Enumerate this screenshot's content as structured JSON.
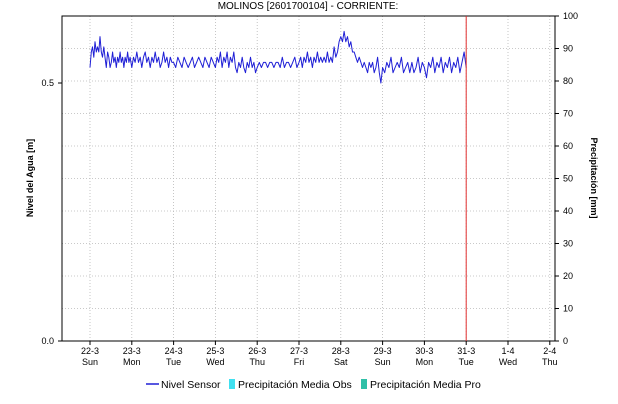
{
  "chart_data": {
    "type": "line",
    "title": "MOLINOS  [2601700104] - CORRIENTE:",
    "ylabel_left": "Nivel del Agua [m]",
    "ylabel_right": "Precipitación [mm]",
    "ylim_left": [
      0,
      0.5
    ],
    "yticks_left": [
      "0.0",
      "0.5"
    ],
    "ylim_right": [
      0,
      100
    ],
    "yticks_right": [
      "0",
      "10",
      "20",
      "30",
      "40",
      "50",
      "60",
      "70",
      "80",
      "90",
      "100"
    ],
    "x_start_day": "22-3",
    "x_ticks": [
      {
        "date": "22-3",
        "weekday": "Sun"
      },
      {
        "date": "23-3",
        "weekday": "Mon"
      },
      {
        "date": "24-3",
        "weekday": "Tue"
      },
      {
        "date": "25-3",
        "weekday": "Wed"
      },
      {
        "date": "26-3",
        "weekday": "Thu"
      },
      {
        "date": "27-3",
        "weekday": "Fri"
      },
      {
        "date": "28-3",
        "weekday": "Sat"
      },
      {
        "date": "29-3",
        "weekday": "Sun"
      },
      {
        "date": "30-3",
        "weekday": "Mon"
      },
      {
        "date": "31-3",
        "weekday": "Tue"
      },
      {
        "date": "1-4",
        "weekday": "Wed"
      },
      {
        "date": "2-4",
        "weekday": "Thu"
      }
    ],
    "current_time_marker": "31-3",
    "grid": true,
    "colors": {
      "sensor": "#1f1fd6",
      "marker": "#e03030",
      "obs": "#40e0f0",
      "pro": "#30c0a8"
    },
    "series": [
      {
        "name": "Nivel Sensor",
        "points": [
          [
            0,
            0.53
          ],
          [
            0.03,
            0.56
          ],
          [
            0.06,
            0.57
          ],
          [
            0.09,
            0.55
          ],
          [
            0.12,
            0.58
          ],
          [
            0.15,
            0.56
          ],
          [
            0.18,
            0.57
          ],
          [
            0.21,
            0.56
          ],
          [
            0.24,
            0.59
          ],
          [
            0.27,
            0.56
          ],
          [
            0.3,
            0.55
          ],
          [
            0.33,
            0.57
          ],
          [
            0.36,
            0.55
          ],
          [
            0.39,
            0.53
          ],
          [
            0.42,
            0.56
          ],
          [
            0.45,
            0.55
          ],
          [
            0.48,
            0.53
          ],
          [
            0.51,
            0.54
          ],
          [
            0.54,
            0.56
          ],
          [
            0.57,
            0.54
          ],
          [
            0.6,
            0.55
          ],
          [
            0.63,
            0.53
          ],
          [
            0.66,
            0.55
          ],
          [
            0.69,
            0.54
          ],
          [
            0.72,
            0.56
          ],
          [
            0.75,
            0.54
          ],
          [
            0.78,
            0.55
          ],
          [
            0.81,
            0.53
          ],
          [
            0.84,
            0.55
          ],
          [
            0.87,
            0.54
          ],
          [
            0.9,
            0.56
          ],
          [
            0.93,
            0.54
          ],
          [
            0.96,
            0.55
          ],
          [
            1.0,
            0.53
          ],
          [
            1.04,
            0.55
          ],
          [
            1.08,
            0.54
          ],
          [
            1.12,
            0.56
          ],
          [
            1.16,
            0.54
          ],
          [
            1.2,
            0.55
          ],
          [
            1.24,
            0.53
          ],
          [
            1.28,
            0.55
          ],
          [
            1.32,
            0.56
          ],
          [
            1.36,
            0.54
          ],
          [
            1.4,
            0.55
          ],
          [
            1.44,
            0.53
          ],
          [
            1.48,
            0.55
          ],
          [
            1.52,
            0.54
          ],
          [
            1.56,
            0.56
          ],
          [
            1.6,
            0.54
          ],
          [
            1.64,
            0.55
          ],
          [
            1.68,
            0.53
          ],
          [
            1.72,
            0.54
          ],
          [
            1.76,
            0.56
          ],
          [
            1.8,
            0.54
          ],
          [
            1.84,
            0.55
          ],
          [
            1.88,
            0.53
          ],
          [
            1.92,
            0.55
          ],
          [
            1.96,
            0.54
          ],
          [
            2.0,
            0.54
          ],
          [
            2.05,
            0.53
          ],
          [
            2.1,
            0.55
          ],
          [
            2.15,
            0.54
          ],
          [
            2.2,
            0.53
          ],
          [
            2.25,
            0.55
          ],
          [
            2.3,
            0.54
          ],
          [
            2.35,
            0.53
          ],
          [
            2.4,
            0.54
          ],
          [
            2.45,
            0.55
          ],
          [
            2.5,
            0.53
          ],
          [
            2.55,
            0.54
          ],
          [
            2.6,
            0.55
          ],
          [
            2.65,
            0.54
          ],
          [
            2.7,
            0.53
          ],
          [
            2.75,
            0.55
          ],
          [
            2.8,
            0.54
          ],
          [
            2.85,
            0.53
          ],
          [
            2.9,
            0.55
          ],
          [
            2.95,
            0.54
          ],
          [
            3.0,
            0.53
          ],
          [
            3.04,
            0.55
          ],
          [
            3.08,
            0.54
          ],
          [
            3.12,
            0.56
          ],
          [
            3.16,
            0.53
          ],
          [
            3.2,
            0.55
          ],
          [
            3.24,
            0.54
          ],
          [
            3.28,
            0.56
          ],
          [
            3.32,
            0.53
          ],
          [
            3.36,
            0.55
          ],
          [
            3.4,
            0.54
          ],
          [
            3.44,
            0.56
          ],
          [
            3.48,
            0.53
          ],
          [
            3.52,
            0.52
          ],
          [
            3.56,
            0.54
          ],
          [
            3.6,
            0.53
          ],
          [
            3.64,
            0.55
          ],
          [
            3.68,
            0.53
          ],
          [
            3.72,
            0.52
          ],
          [
            3.76,
            0.54
          ],
          [
            3.8,
            0.53
          ],
          [
            3.84,
            0.55
          ],
          [
            3.88,
            0.53
          ],
          [
            3.92,
            0.54
          ],
          [
            3.96,
            0.52
          ],
          [
            4.0,
            0.53
          ],
          [
            4.05,
            0.54
          ],
          [
            4.1,
            0.53
          ],
          [
            4.15,
            0.54
          ],
          [
            4.2,
            0.54
          ],
          [
            4.25,
            0.53
          ],
          [
            4.3,
            0.54
          ],
          [
            4.35,
            0.54
          ],
          [
            4.4,
            0.53
          ],
          [
            4.45,
            0.54
          ],
          [
            4.5,
            0.54
          ],
          [
            4.55,
            0.53
          ],
          [
            4.6,
            0.55
          ],
          [
            4.65,
            0.53
          ],
          [
            4.7,
            0.54
          ],
          [
            4.75,
            0.54
          ],
          [
            4.8,
            0.53
          ],
          [
            4.85,
            0.54
          ],
          [
            4.9,
            0.55
          ],
          [
            4.95,
            0.53
          ],
          [
            5.0,
            0.54
          ],
          [
            5.04,
            0.55
          ],
          [
            5.08,
            0.53
          ],
          [
            5.12,
            0.55
          ],
          [
            5.16,
            0.54
          ],
          [
            5.2,
            0.56
          ],
          [
            5.24,
            0.54
          ],
          [
            5.28,
            0.55
          ],
          [
            5.32,
            0.53
          ],
          [
            5.36,
            0.55
          ],
          [
            5.4,
            0.54
          ],
          [
            5.44,
            0.56
          ],
          [
            5.48,
            0.54
          ],
          [
            5.52,
            0.55
          ],
          [
            5.56,
            0.54
          ],
          [
            5.6,
            0.55
          ],
          [
            5.64,
            0.54
          ],
          [
            5.68,
            0.56
          ],
          [
            5.72,
            0.54
          ],
          [
            5.76,
            0.55
          ],
          [
            5.8,
            0.54
          ],
          [
            5.84,
            0.57
          ],
          [
            5.88,
            0.55
          ],
          [
            5.92,
            0.56
          ],
          [
            5.96,
            0.58
          ],
          [
            6.0,
            0.59
          ],
          [
            6.04,
            0.58
          ],
          [
            6.08,
            0.6
          ],
          [
            6.12,
            0.58
          ],
          [
            6.16,
            0.59
          ],
          [
            6.2,
            0.57
          ],
          [
            6.24,
            0.58
          ],
          [
            6.28,
            0.56
          ],
          [
            6.32,
            0.56
          ],
          [
            6.36,
            0.55
          ],
          [
            6.4,
            0.54
          ],
          [
            6.44,
            0.55
          ],
          [
            6.48,
            0.54
          ],
          [
            6.52,
            0.53
          ],
          [
            6.56,
            0.54
          ],
          [
            6.6,
            0.53
          ],
          [
            6.64,
            0.52
          ],
          [
            6.68,
            0.54
          ],
          [
            6.72,
            0.53
          ],
          [
            6.76,
            0.54
          ],
          [
            6.8,
            0.52
          ],
          [
            6.84,
            0.53
          ],
          [
            6.88,
            0.55
          ],
          [
            6.92,
            0.52
          ],
          [
            6.96,
            0.5
          ],
          [
            7.0,
            0.53
          ],
          [
            7.05,
            0.52
          ],
          [
            7.1,
            0.54
          ],
          [
            7.15,
            0.53
          ],
          [
            7.2,
            0.55
          ],
          [
            7.25,
            0.52
          ],
          [
            7.3,
            0.53
          ],
          [
            7.35,
            0.54
          ],
          [
            7.4,
            0.53
          ],
          [
            7.45,
            0.55
          ],
          [
            7.5,
            0.52
          ],
          [
            7.55,
            0.53
          ],
          [
            7.6,
            0.54
          ],
          [
            7.65,
            0.52
          ],
          [
            7.7,
            0.54
          ],
          [
            7.75,
            0.52
          ],
          [
            7.8,
            0.53
          ],
          [
            7.85,
            0.55
          ],
          [
            7.9,
            0.52
          ],
          [
            7.95,
            0.54
          ],
          [
            8.0,
            0.53
          ],
          [
            8.05,
            0.51
          ],
          [
            8.1,
            0.54
          ],
          [
            8.15,
            0.53
          ],
          [
            8.2,
            0.55
          ],
          [
            8.25,
            0.52
          ],
          [
            8.3,
            0.54
          ],
          [
            8.35,
            0.53
          ],
          [
            8.4,
            0.55
          ],
          [
            8.45,
            0.52
          ],
          [
            8.5,
            0.54
          ],
          [
            8.55,
            0.53
          ],
          [
            8.6,
            0.55
          ],
          [
            8.65,
            0.52
          ],
          [
            8.7,
            0.54
          ],
          [
            8.75,
            0.53
          ],
          [
            8.8,
            0.55
          ],
          [
            8.85,
            0.52
          ],
          [
            8.9,
            0.54
          ],
          [
            8.95,
            0.56
          ],
          [
            9.0,
            0.53
          ]
        ]
      },
      {
        "name": "Precipitación Media Obs",
        "values": []
      },
      {
        "name": "Precipitación Media Pro",
        "values": []
      }
    ]
  }
}
